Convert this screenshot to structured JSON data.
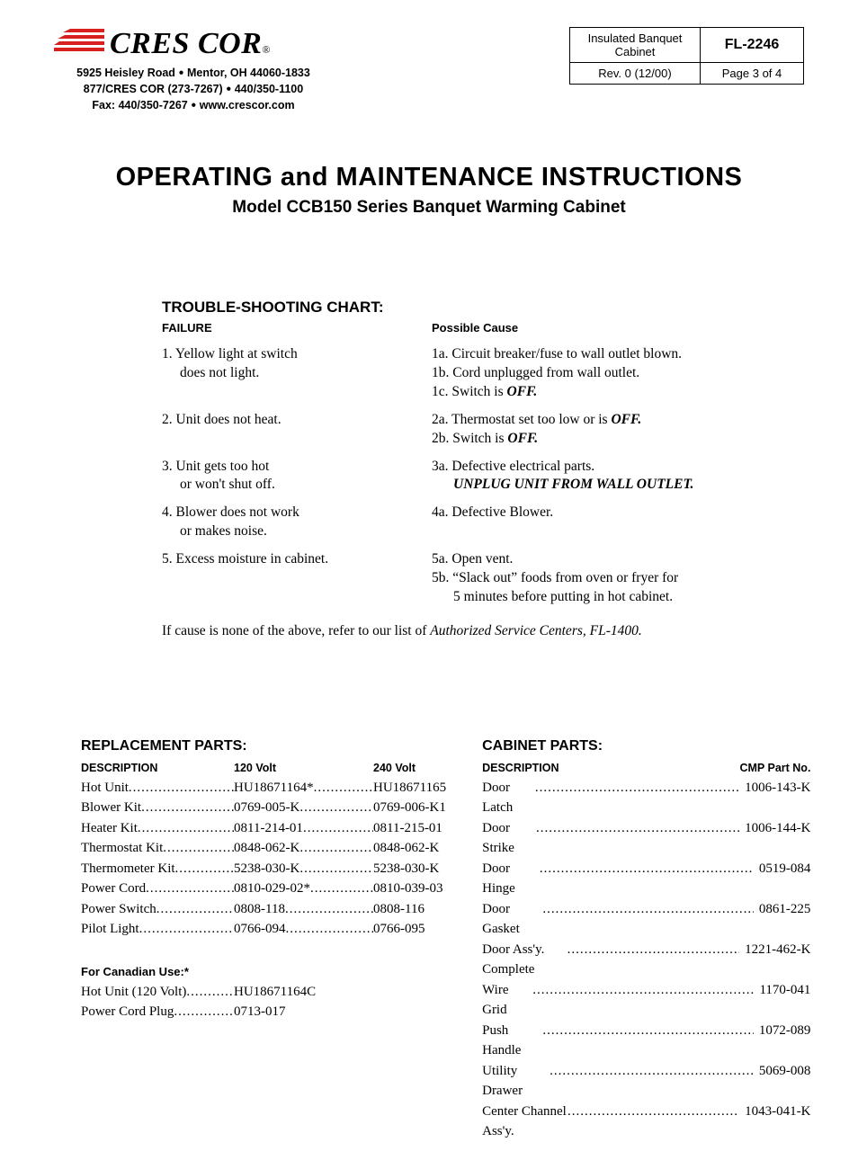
{
  "header": {
    "brand": "CRES COR",
    "reg": "®",
    "addr_line1_a": "5925 Heisley Road",
    "addr_line1_b": "Mentor, OH 44060-1833",
    "addr_line2_a": "877/CRES COR (273-7267)",
    "addr_line2_b": "440/350-1100",
    "addr_line3_a": "Fax: 440/350-7267",
    "addr_line3_b": "www.crescor.com",
    "box": {
      "desc": "Insulated Banquet Cabinet",
      "code": "FL-2246",
      "rev": "Rev. 0 (12/00)",
      "page": "Page 3 of 4"
    },
    "logo_stripe_color": "#d8201f"
  },
  "title": {
    "main": "OPERATING and MAINTENANCE INSTRUCTIONS",
    "sub": "Model CCB150 Series Banquet Warming Cabinet"
  },
  "troubleshoot": {
    "heading": "TROUBLE-SHOOTING CHART:",
    "col1": "FAILURE",
    "col2": "Possible Cause",
    "rows": [
      {
        "f_main": "1. Yellow light at switch",
        "f_sub": "does not light.",
        "c": [
          {
            "pre": "1a. Circuit breaker/fuse to wall outlet blown."
          },
          {
            "pre": "1b. Cord unplugged from wall outlet."
          },
          {
            "pre": "1c. Switch is ",
            "bi": "OFF."
          }
        ]
      },
      {
        "f_main": "2. Unit does not heat.",
        "f_sub": "",
        "c": [
          {
            "pre": "2a. Thermostat set too low or is ",
            "bi": "OFF."
          },
          {
            "pre": "2b. Switch is ",
            "bi": "OFF."
          }
        ]
      },
      {
        "f_main": "3. Unit gets too hot",
        "f_sub": "or won't shut off.",
        "c": [
          {
            "pre": "3a. Defective electrical parts."
          },
          {
            "bi": "UNPLUG UNIT FROM WALL OUTLET.",
            "indent": true
          }
        ]
      },
      {
        "f_main": "4. Blower does not work",
        "f_sub": "or makes noise.",
        "c": [
          {
            "pre": "4a. Defective Blower."
          }
        ]
      },
      {
        "f_main": "5. Excess moisture in cabinet.",
        "f_sub": "",
        "c": [
          {
            "pre": "5a. Open vent."
          },
          {
            "pre": "5b. “Slack out” foods from oven or fryer for"
          },
          {
            "pre": "5 minutes before putting in hot cabinet.",
            "indent": true
          }
        ]
      }
    ],
    "footnote_pre": "If cause is none of the above, refer to our list of ",
    "footnote_ital": "Authorized Service Centers, FL-1400."
  },
  "replacement": {
    "heading": "REPLACEMENT PARTS:",
    "cols": {
      "desc": "DESCRIPTION",
      "v120": "120 Volt",
      "v240": "240 Volt"
    },
    "rows": [
      {
        "d": "Hot Unit",
        "a": "HU18671164*",
        "b": "HU18671165"
      },
      {
        "d": "Blower Kit",
        "a": "0769-005-K",
        "b": "0769-006-K1"
      },
      {
        "d": "Heater Kit",
        "a": "0811-214-01",
        "b": "0811-215-01"
      },
      {
        "d": "Thermostat Kit",
        "a": "0848-062-K",
        "b": "0848-062-K"
      },
      {
        "d": "Thermometer Kit",
        "a": "5238-030-K",
        "b": "5238-030-K"
      },
      {
        "d": "Power Cord",
        "a": "0810-029-02*",
        "b": "0810-039-03"
      },
      {
        "d": "Power Switch",
        "a": "0808-118",
        "b": "0808-116"
      },
      {
        "d": "Pilot Light",
        "a": "0766-094",
        "b": "0766-095"
      }
    ],
    "canadian_heading": "For Canadian Use:*",
    "canadian_rows": [
      {
        "d": "Hot Unit (120 Volt)",
        "a": "HU18671164C"
      },
      {
        "d": "Power Cord Plug",
        "a": "0713-017"
      }
    ]
  },
  "cabinet": {
    "heading": "CABINET PARTS:",
    "cols": {
      "desc": "DESCRIPTION",
      "num": "CMP Part No."
    },
    "rows": [
      {
        "d": "Door Latch",
        "n": "1006-143-K"
      },
      {
        "d": "Door Strike",
        "n": "1006-144-K"
      },
      {
        "d": "Door Hinge",
        "n": "0519-084"
      },
      {
        "d": "Door Gasket",
        "n": "0861-225"
      },
      {
        "d": "Door Ass'y. Complete",
        "n": "1221-462-K"
      },
      {
        "d": "Wire Grid",
        "n": "1170-041"
      },
      {
        "d": "Push Handle",
        "n": "1072-089"
      },
      {
        "d": "Utility Drawer",
        "n": "5069-008"
      },
      {
        "d": "Center Channel Ass'y.",
        "n": "1043-041-K"
      }
    ]
  }
}
